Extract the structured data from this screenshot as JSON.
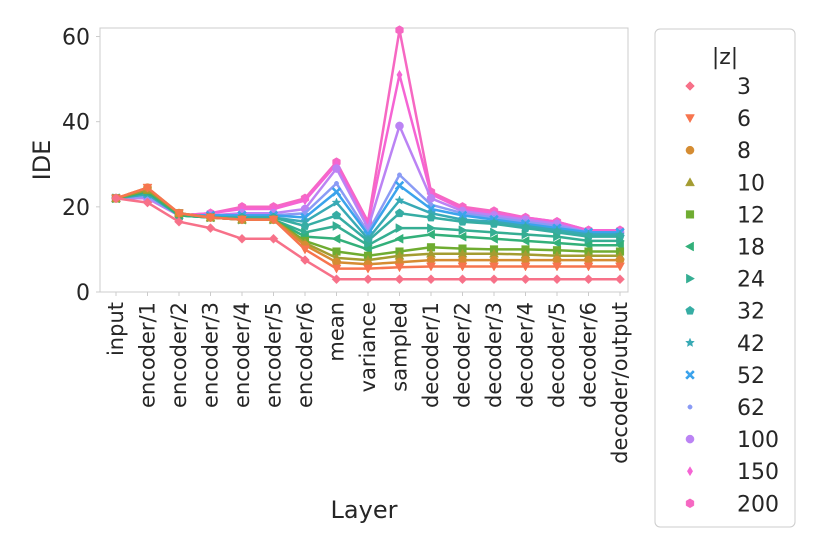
{
  "chart_data": {
    "type": "line",
    "title": "",
    "xlabel": "Layer",
    "ylabel": "IDE",
    "ylim": [
      0,
      62
    ],
    "yticks": [
      0,
      20,
      40,
      60
    ],
    "grid": false,
    "legend_title": "|z|",
    "legend_position": "right-outside",
    "categories": [
      "input",
      "encoder/1",
      "encoder/2",
      "encoder/3",
      "encoder/4",
      "encoder/5",
      "encoder/6",
      "mean",
      "variance",
      "sampled",
      "decoder/1",
      "decoder/2",
      "decoder/3",
      "decoder/4",
      "decoder/5",
      "decoder/6",
      "decoder/output"
    ],
    "series": [
      {
        "name": "3",
        "color": "#f77189",
        "marker": "diamond",
        "values": [
          22,
          21,
          16.5,
          15,
          12.5,
          12.5,
          7.5,
          3,
          3,
          3,
          3,
          3,
          3,
          3,
          3,
          3,
          3
        ]
      },
      {
        "name": "6",
        "color": "#f7754f",
        "marker": "triangle-down",
        "values": [
          22,
          24.5,
          18.5,
          17.5,
          17,
          17,
          10,
          5.5,
          5.5,
          5.8,
          6,
          6,
          6,
          6,
          6,
          6,
          6
        ]
      },
      {
        "name": "8",
        "color": "#d58c32",
        "marker": "circle",
        "values": [
          22,
          24.5,
          18.5,
          17.5,
          17,
          17,
          11,
          7,
          6.5,
          7,
          7.5,
          7.5,
          7.5,
          7.5,
          7.5,
          7.5,
          7.5
        ]
      },
      {
        "name": "10",
        "color": "#a49c31",
        "marker": "triangle-up",
        "values": [
          22,
          24,
          18.5,
          17.5,
          17,
          17,
          11.5,
          8,
          7.5,
          8.5,
          9,
          9,
          9,
          8.8,
          8.5,
          8.5,
          8.5
        ]
      },
      {
        "name": "12",
        "color": "#6fac31",
        "marker": "square",
        "values": [
          22,
          24,
          18.5,
          17.5,
          17,
          17,
          12,
          9.5,
          8.5,
          9.5,
          10.5,
          10.2,
          10,
          10,
          9.8,
          9.5,
          9.5
        ]
      },
      {
        "name": "18",
        "color": "#33b07a",
        "marker": "triangle-left",
        "values": [
          22,
          23.5,
          18,
          17.5,
          17,
          17,
          13,
          12.5,
          10,
          12.5,
          13.5,
          13,
          12.5,
          12,
          11.5,
          11,
          11
        ]
      },
      {
        "name": "24",
        "color": "#35ae93",
        "marker": "triangle-right",
        "values": [
          22,
          23.5,
          18,
          17.5,
          17,
          17,
          14,
          15.5,
          11,
          15,
          15,
          14.5,
          14,
          13.5,
          13,
          12,
          12
        ]
      },
      {
        "name": "32",
        "color": "#36ada4",
        "marker": "pentagon",
        "values": [
          22,
          23.5,
          18,
          17.5,
          17.5,
          17.5,
          15.5,
          18,
          12,
          18.5,
          17.5,
          16.5,
          16,
          15,
          14,
          13,
          13
        ]
      },
      {
        "name": "42",
        "color": "#38aab5",
        "marker": "star",
        "values": [
          22,
          23,
          18,
          17.5,
          17.5,
          17.5,
          16.5,
          21,
          12.5,
          21.5,
          18.5,
          17,
          16.5,
          15.5,
          14.5,
          13.5,
          13.5
        ]
      },
      {
        "name": "52",
        "color": "#3ba3ec",
        "marker": "x",
        "values": [
          22,
          23,
          18,
          18,
          18,
          18,
          17.5,
          23.5,
          13.5,
          25,
          19.5,
          18,
          17,
          16,
          15,
          14,
          14
        ]
      },
      {
        "name": "62",
        "color": "#8a9bf5",
        "marker": "point",
        "values": [
          22,
          22.5,
          18,
          18,
          18,
          18,
          18.5,
          25.5,
          14,
          27.5,
          20.5,
          18.5,
          17.5,
          16.5,
          15.5,
          14,
          14
        ]
      },
      {
        "name": "100",
        "color": "#bb83f4",
        "marker": "circle",
        "values": [
          22,
          22,
          18,
          18,
          18.5,
          18.5,
          19.5,
          29,
          15,
          39,
          22,
          19,
          18,
          17,
          16,
          14,
          14
        ]
      },
      {
        "name": "150",
        "color": "#f564d4",
        "marker": "thin-diamond",
        "values": [
          22,
          22,
          18,
          18.5,
          19.5,
          19.5,
          21.5,
          30,
          16,
          51,
          23,
          19.5,
          18.5,
          17.5,
          16.5,
          14.5,
          14.5
        ]
      },
      {
        "name": "200",
        "color": "#f668c2",
        "marker": "hexagon",
        "values": [
          22,
          22,
          18,
          18.5,
          20,
          20,
          22,
          30.5,
          16.5,
          61.5,
          23.5,
          20,
          19,
          17.5,
          16.5,
          14.5,
          14.5
        ]
      }
    ]
  }
}
